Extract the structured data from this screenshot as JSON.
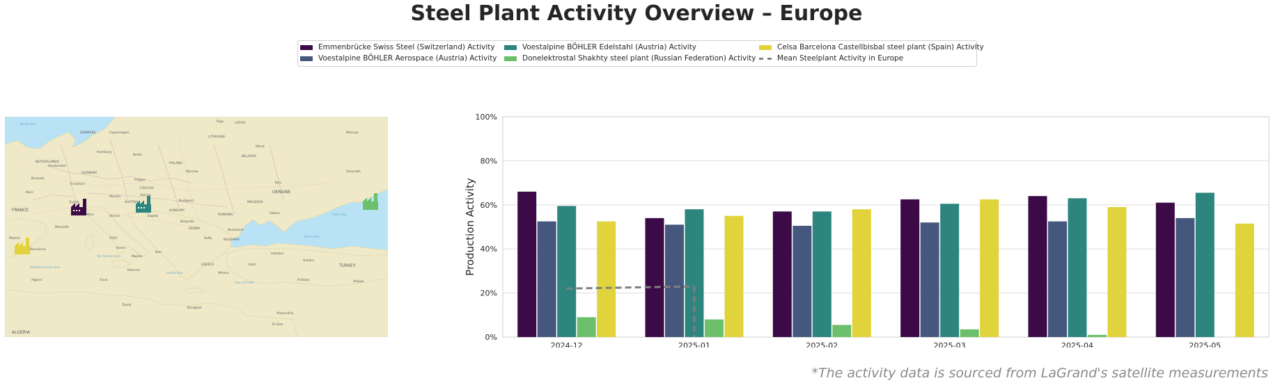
{
  "title": "Steel Plant Activity Overview – Europe",
  "footnote": "*The activity data is sourced from LaGrand's satellite measurements",
  "colors": {
    "emmenbrucke": "#3b0a47",
    "aerospace": "#45577d",
    "edelstahl": "#2d857e",
    "donelektrostal": "#6cc06b",
    "celsa": "#e1d33c",
    "mean": "#808080",
    "sea": "#b9e3f5",
    "land": "#efe9c8"
  },
  "legend": [
    {
      "label": "Emmenbrücke Swiss Steel (Switzerland) Activity",
      "color": "#3b0a47",
      "style": "bar"
    },
    {
      "label": "Voestalpine BÖHLER Aerospace (Austria) Activity",
      "color": "#45577d",
      "style": "bar"
    },
    {
      "label": "Voestalpine BÖHLER Edelstahl (Austria) Activity",
      "color": "#2d857e",
      "style": "bar"
    },
    {
      "label": "Donelektrostal Shakhty steel plant (Russian Federation) Activity",
      "color": "#6cc06b",
      "style": "bar"
    },
    {
      "label": "Celsa Barcelona Castellbisbal steel plant (Spain) Activity",
      "color": "#e1d33c",
      "style": "bar"
    },
    {
      "label": "Mean Steelplant Activity in Europe",
      "color": "#808080",
      "style": "dashed"
    }
  ],
  "map": {
    "labels": [
      "North Sea",
      "DENMARK",
      "Copenhagen",
      "LATVIA",
      "Riga",
      "LITHUANIA",
      "Moscow",
      "Minsk",
      "BELARUS",
      "NETHERLANDS",
      "Amsterdam",
      "Hamburg",
      "Berlin",
      "POLAND",
      "Warsaw",
      "GERMANY",
      "Prague",
      "Brussels",
      "Paris",
      "Frankfurt",
      "CZECHIA",
      "Kyiv",
      "UKRAINE",
      "Voronezh",
      "FRANCE",
      "Munich",
      "Vienna",
      "Budapest",
      "Zurich",
      "AUSTRIA",
      "HUNGARY",
      "Milan",
      "Venice",
      "Zagreb",
      "MOLDOVA",
      "ROMANIA",
      "Odesa",
      "Bucharest",
      "Azov Sea",
      "Marseille",
      "Belgrade",
      "ITALY",
      "SERBIA",
      "BULGARIA",
      "Black Sea",
      "Rome",
      "Sofia",
      "Barcelona",
      "Madrid",
      "Tyrrhenian Sea",
      "Naples",
      "Bari",
      "Istanbul",
      "Ankara",
      "TURKEY",
      "Mediterranean Sea",
      "Algiers",
      "Tunis",
      "Palermo",
      "Ionian Sea",
      "GREECE",
      "Athens",
      "Sea of Crete",
      "Izmir",
      "Antalya",
      "Aleppo",
      "Tripoli",
      "Benghazi",
      "Alexandria",
      "El Giza",
      "ALGERIA"
    ]
  },
  "chart_data": {
    "type": "bar",
    "categories": [
      "2024-12",
      "2025-01",
      "2025-02",
      "2025-03",
      "2025-04",
      "2025-05"
    ],
    "series": [
      {
        "name": "Emmenbrücke Swiss Steel (Switzerland) Activity",
        "color": "#3b0a47",
        "values": [
          66,
          54,
          57,
          62.5,
          64,
          61
        ]
      },
      {
        "name": "Voestalpine BÖHLER Aerospace (Austria) Activity",
        "color": "#45577d",
        "values": [
          52.5,
          51,
          50.5,
          52,
          52.5,
          54
        ]
      },
      {
        "name": "Voestalpine BÖHLER Edelstahl (Austria) Activity",
        "color": "#2d857e",
        "values": [
          59.5,
          58,
          57,
          60.5,
          63,
          65.5
        ]
      },
      {
        "name": "Donelektrostal Shakhty steel plant (Russian Federation) Activity",
        "color": "#6cc06b",
        "values": [
          9,
          8,
          5.5,
          3.5,
          1,
          null
        ]
      },
      {
        "name": "Celsa Barcelona Castellbisbal steel plant (Spain) Activity",
        "color": "#e1d33c",
        "values": [
          52.5,
          55,
          58,
          62.5,
          59,
          51.5
        ]
      }
    ],
    "mean_line": {
      "name": "Mean Steelplant Activity in Europe",
      "x": [
        "2024-12",
        "2025-01"
      ],
      "values": [
        22,
        23
      ]
    },
    "ylabel": "Production Activity",
    "xlabel": "",
    "ylim": [
      0,
      100
    ],
    "yticks": [
      0,
      20,
      40,
      60,
      80,
      100
    ],
    "ytick_labels": [
      "0%",
      "20%",
      "40%",
      "60%",
      "80%",
      "100%"
    ],
    "grid": "horizontal",
    "legend_position": "top-center"
  }
}
